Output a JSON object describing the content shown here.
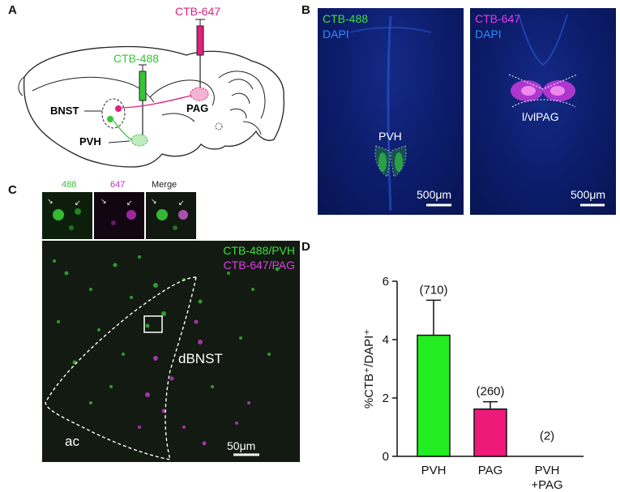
{
  "figure": {
    "panel_a": {
      "letter": "A",
      "tracer_magenta": "CTB-647",
      "tracer_green": "CTB-488",
      "region_bnst": "BNST",
      "region_pag": "PAG",
      "region_pvh": "PVH",
      "colors": {
        "green": "#35c535",
        "magenta": "#e0207c"
      }
    },
    "panel_b": {
      "letter": "B",
      "left": {
        "ch1": "CTB-488",
        "ch2": "DAPI",
        "region": "PVH",
        "scale": "500μm"
      },
      "right": {
        "ch1": "CTB-647",
        "ch2": "DAPI",
        "region": "l/vlPAG",
        "scale": "500μm"
      },
      "colors": {
        "dapi": "#2a8cff",
        "ctb488": "#3ee03e",
        "ctb647": "#e23ee8"
      }
    },
    "panel_c": {
      "letter": "C",
      "inset_labels": [
        "488",
        "647",
        "Merge"
      ],
      "legend_green": "CTB-488/PVH",
      "legend_magenta": "CTB-647/PAG",
      "region_dbnst": "dBNST",
      "region_ac": "ac",
      "scale": "50μm"
    },
    "panel_d": {
      "letter": "D",
      "ylabel": "%CTB⁺/DAPI⁺"
    }
  },
  "chart_data": {
    "type": "bar",
    "categories": [
      "PVH",
      "PAG",
      "PVH\n+PAG"
    ],
    "category_lines": [
      [
        "PVH"
      ],
      [
        "PAG"
      ],
      [
        "PVH",
        "+PAG"
      ]
    ],
    "values": [
      4.15,
      1.62,
      0.0
    ],
    "error_plus": [
      1.2,
      0.25,
      0.0
    ],
    "annotations": [
      "(710)",
      "(260)",
      "(2)"
    ],
    "bar_colors": [
      "#22ee22",
      "#ee1a7a",
      "#ffffff"
    ],
    "ylabel": "%CTB⁺/DAPI⁺",
    "ylim": [
      0,
      6
    ],
    "yticks": [
      0,
      2,
      4,
      6
    ],
    "grid": false,
    "legend": "none"
  }
}
